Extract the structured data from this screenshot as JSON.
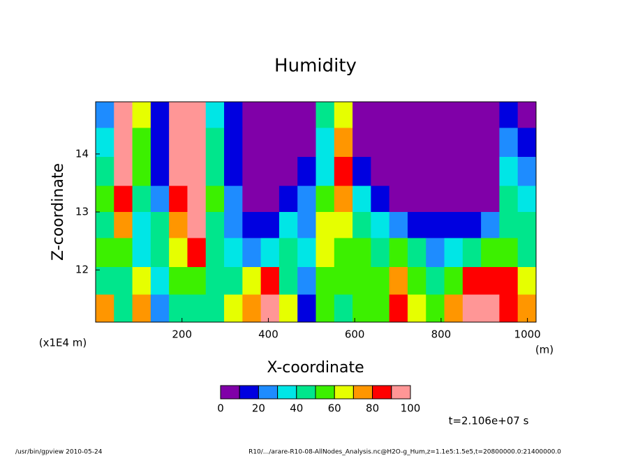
{
  "chart_data": {
    "type": "contour",
    "title": "Humidity",
    "xlabel": "X-coordinate",
    "ylabel": "Z-coordinate",
    "xunit": "(m)",
    "yunit": "(x1E4 m)",
    "time_label": "t=2.106e+07 s",
    "footer_left": "/usr/bin/gpview  2010-05-24",
    "footer_right": "R10/.../arare-R10-08-AllNodes_Analysis.nc@H2O-g_Hum,z=1.1e5:1.5e5,t=20800000.0:21400000.0",
    "xlim": [
      0,
      1020
    ],
    "xticks": [
      200,
      400,
      600,
      800,
      1000
    ],
    "ylim": [
      11.1,
      14.9
    ],
    "yticks": [
      12,
      13,
      14
    ],
    "x": [
      21,
      64,
      106,
      149,
      191,
      234,
      276,
      319,
      361,
      404,
      446,
      489,
      531,
      574,
      616,
      659,
      701,
      744,
      786,
      829,
      871,
      914,
      956,
      999
    ],
    "y": [
      14.7,
      14.2,
      13.7,
      13.2,
      12.8,
      12.3,
      11.8,
      11.35
    ],
    "z": [
      [
        20,
        95,
        60,
        15,
        95,
        90,
        30,
        15,
        5,
        5,
        5,
        5,
        40,
        60,
        5,
        5,
        5,
        5,
        5,
        5,
        5,
        5,
        15,
        5
      ],
      [
        30,
        90,
        55,
        10,
        90,
        95,
        40,
        10,
        5,
        5,
        5,
        5,
        35,
        70,
        5,
        5,
        5,
        5,
        5,
        5,
        5,
        5,
        25,
        15
      ],
      [
        40,
        90,
        50,
        10,
        95,
        95,
        45,
        15,
        5,
        5,
        5,
        10,
        30,
        80,
        15,
        5,
        5,
        5,
        5,
        5,
        5,
        5,
        30,
        20
      ],
      [
        55,
        85,
        40,
        25,
        85,
        95,
        50,
        20,
        5,
        5,
        15,
        25,
        50,
        75,
        30,
        15,
        5,
        5,
        5,
        5,
        5,
        5,
        40,
        30
      ],
      [
        45,
        70,
        30,
        40,
        70,
        90,
        45,
        25,
        10,
        15,
        35,
        25,
        60,
        60,
        40,
        35,
        25,
        15,
        10,
        10,
        15,
        20,
        45,
        40
      ],
      [
        50,
        55,
        35,
        40,
        60,
        80,
        40,
        30,
        25,
        35,
        40,
        30,
        60,
        55,
        50,
        45,
        55,
        40,
        25,
        30,
        40,
        50,
        55,
        45
      ],
      [
        40,
        45,
        60,
        35,
        50,
        50,
        40,
        40,
        65,
        80,
        45,
        20,
        55,
        50,
        55,
        50,
        75,
        50,
        40,
        55,
        80,
        85,
        80,
        60
      ],
      [
        75,
        40,
        70,
        25,
        40,
        40,
        45,
        60,
        75,
        90,
        60,
        15,
        50,
        45,
        55,
        55,
        80,
        60,
        55,
        70,
        90,
        90,
        85,
        70
      ]
    ],
    "levels": [
      0,
      10,
      20,
      30,
      40,
      50,
      60,
      70,
      80,
      90,
      100
    ],
    "colors": [
      "#8000a8",
      "#0000e0",
      "#1e8cff",
      "#00e6e6",
      "#00e68c",
      "#3cf000",
      "#e6ff00",
      "#ff9600",
      "#ff0000",
      "#ff9696"
    ],
    "colorbar_ticks": [
      0,
      20,
      40,
      60,
      80,
      100
    ]
  }
}
